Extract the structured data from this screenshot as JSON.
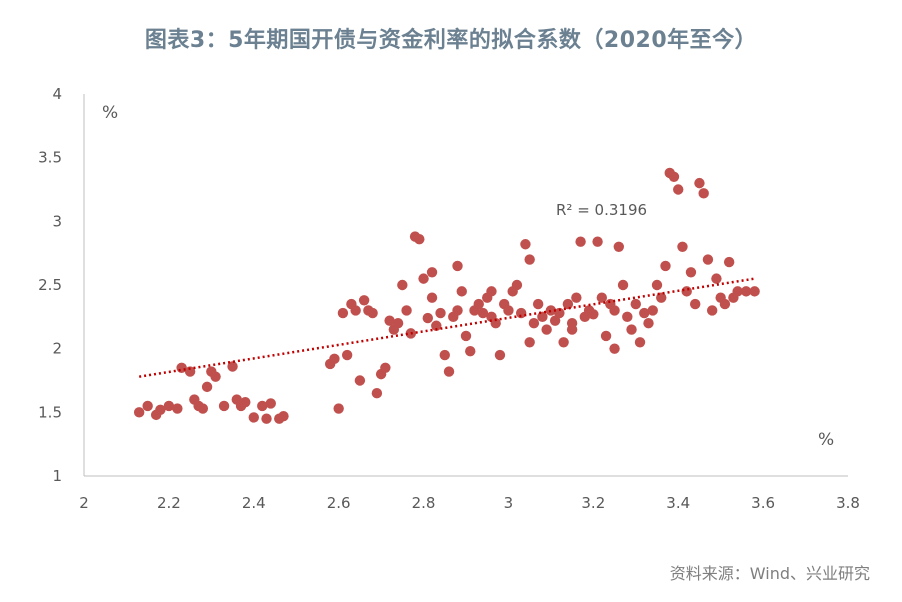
{
  "chart_data": {
    "type": "scatter",
    "title": "图表3：5年期国开债与资金利率的拟合系数（2020年至今）",
    "xlabel": "%",
    "ylabel": "%",
    "xlim": [
      2,
      3.8
    ],
    "ylim": [
      1,
      4
    ],
    "x_ticks": [
      "2",
      "2.2",
      "2.4",
      "2.6",
      "2.8",
      "3",
      "3.2",
      "3.4",
      "3.6",
      "3.8"
    ],
    "y_ticks": [
      "1",
      "1.5",
      "2",
      "2.5",
      "3",
      "3.5",
      "4"
    ],
    "grid": false,
    "marker_color": "#c0504d",
    "trendline": {
      "type": "linear",
      "x": [
        2.13,
        3.58
      ],
      "y": [
        1.78,
        2.55
      ],
      "style": "dotted",
      "color": "#c00000"
    },
    "annotation": "R² = 0.3196",
    "points": [
      [
        2.13,
        1.5
      ],
      [
        2.15,
        1.55
      ],
      [
        2.17,
        1.48
      ],
      [
        2.18,
        1.52
      ],
      [
        2.2,
        1.55
      ],
      [
        2.22,
        1.53
      ],
      [
        2.23,
        1.85
      ],
      [
        2.25,
        1.82
      ],
      [
        2.26,
        1.6
      ],
      [
        2.27,
        1.55
      ],
      [
        2.28,
        1.53
      ],
      [
        2.29,
        1.7
      ],
      [
        2.3,
        1.82
      ],
      [
        2.31,
        1.78
      ],
      [
        2.33,
        1.55
      ],
      [
        2.35,
        1.86
      ],
      [
        2.36,
        1.6
      ],
      [
        2.37,
        1.55
      ],
      [
        2.38,
        1.58
      ],
      [
        2.4,
        1.46
      ],
      [
        2.42,
        1.55
      ],
      [
        2.43,
        1.45
      ],
      [
        2.44,
        1.57
      ],
      [
        2.46,
        1.45
      ],
      [
        2.47,
        1.47
      ],
      [
        2.58,
        1.88
      ],
      [
        2.59,
        1.92
      ],
      [
        2.6,
        1.53
      ],
      [
        2.61,
        2.28
      ],
      [
        2.62,
        1.95
      ],
      [
        2.63,
        2.35
      ],
      [
        2.64,
        2.3
      ],
      [
        2.65,
        1.75
      ],
      [
        2.66,
        2.38
      ],
      [
        2.67,
        2.3
      ],
      [
        2.68,
        2.28
      ],
      [
        2.69,
        1.65
      ],
      [
        2.7,
        1.8
      ],
      [
        2.71,
        1.85
      ],
      [
        2.72,
        2.22
      ],
      [
        2.73,
        2.15
      ],
      [
        2.74,
        2.2
      ],
      [
        2.75,
        2.5
      ],
      [
        2.76,
        2.3
      ],
      [
        2.77,
        2.12
      ],
      [
        2.78,
        2.88
      ],
      [
        2.79,
        2.86
      ],
      [
        2.8,
        2.55
      ],
      [
        2.81,
        2.24
      ],
      [
        2.82,
        2.4
      ],
      [
        2.83,
        2.18
      ],
      [
        2.84,
        2.28
      ],
      [
        2.85,
        1.95
      ],
      [
        2.86,
        1.82
      ],
      [
        2.87,
        2.25
      ],
      [
        2.88,
        2.3
      ],
      [
        2.89,
        2.45
      ],
      [
        2.9,
        2.1
      ],
      [
        2.91,
        1.98
      ],
      [
        2.92,
        2.3
      ],
      [
        2.93,
        2.35
      ],
      [
        2.94,
        2.28
      ],
      [
        2.95,
        2.4
      ],
      [
        2.96,
        2.25
      ],
      [
        2.97,
        2.2
      ],
      [
        2.98,
        1.95
      ],
      [
        2.99,
        2.35
      ],
      [
        3.0,
        2.3
      ],
      [
        3.01,
        2.45
      ],
      [
        3.02,
        2.5
      ],
      [
        3.03,
        2.28
      ],
      [
        3.04,
        2.82
      ],
      [
        3.05,
        2.7
      ],
      [
        3.06,
        2.2
      ],
      [
        3.07,
        2.35
      ],
      [
        3.08,
        2.25
      ],
      [
        3.09,
        2.15
      ],
      [
        3.1,
        2.3
      ],
      [
        3.11,
        2.22
      ],
      [
        3.12,
        2.28
      ],
      [
        3.13,
        2.05
      ],
      [
        3.14,
        2.35
      ],
      [
        3.15,
        2.2
      ],
      [
        3.16,
        2.4
      ],
      [
        3.17,
        2.84
      ],
      [
        3.18,
        2.25
      ],
      [
        3.19,
        2.3
      ],
      [
        3.2,
        2.27
      ],
      [
        3.21,
        2.84
      ],
      [
        3.22,
        2.4
      ],
      [
        3.23,
        2.1
      ],
      [
        3.24,
        2.35
      ],
      [
        3.25,
        2.3
      ],
      [
        3.26,
        2.8
      ],
      [
        3.27,
        2.5
      ],
      [
        3.28,
        2.25
      ],
      [
        3.29,
        2.15
      ],
      [
        3.3,
        2.35
      ],
      [
        3.31,
        2.05
      ],
      [
        3.32,
        2.28
      ],
      [
        3.33,
        2.2
      ],
      [
        3.34,
        2.3
      ],
      [
        3.35,
        2.5
      ],
      [
        3.36,
        2.4
      ],
      [
        3.37,
        2.65
      ],
      [
        3.38,
        3.38
      ],
      [
        3.39,
        3.35
      ],
      [
        3.4,
        3.25
      ],
      [
        3.41,
        2.8
      ],
      [
        3.42,
        2.45
      ],
      [
        3.43,
        2.6
      ],
      [
        3.44,
        2.35
      ],
      [
        3.45,
        3.3
      ],
      [
        3.46,
        3.22
      ],
      [
        3.47,
        2.7
      ],
      [
        3.48,
        2.3
      ],
      [
        3.49,
        2.55
      ],
      [
        3.5,
        2.4
      ],
      [
        3.51,
        2.35
      ],
      [
        3.52,
        2.68
      ],
      [
        3.53,
        2.4
      ],
      [
        3.54,
        2.45
      ],
      [
        3.56,
        2.45
      ],
      [
        3.58,
        2.45
      ],
      [
        2.82,
        2.6
      ],
      [
        2.88,
        2.65
      ],
      [
        2.96,
        2.45
      ],
      [
        3.05,
        2.05
      ],
      [
        3.15,
        2.15
      ],
      [
        3.25,
        2.0
      ]
    ]
  },
  "source": "资料来源：Wind、兴业研究"
}
